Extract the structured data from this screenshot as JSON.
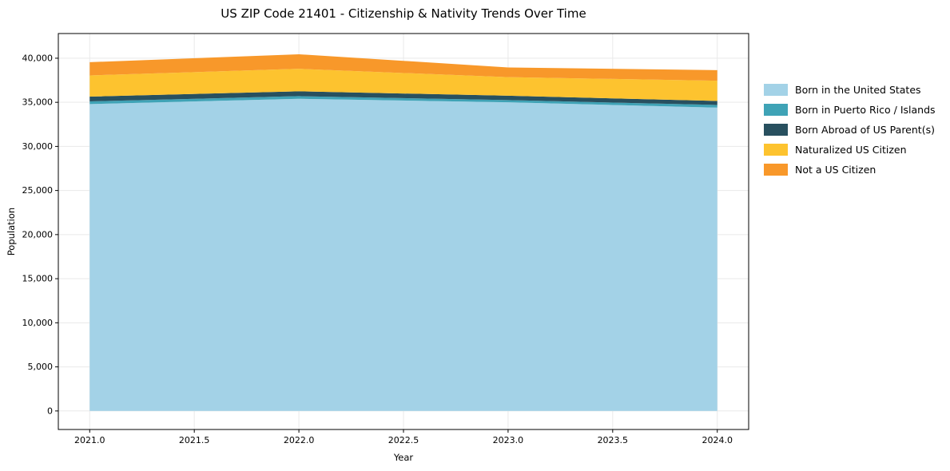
{
  "chart_data": {
    "type": "area",
    "title": "US ZIP Code 21401 - Citizenship & Nativity Trends Over Time",
    "xlabel": "Year",
    "ylabel": "Population",
    "x": [
      2021,
      2022,
      2023,
      2024
    ],
    "series": [
      {
        "name": "Born in the United States",
        "color": "#a3d2e7",
        "values": [
          34800,
          35400,
          35000,
          34400
        ]
      },
      {
        "name": "Born in Puerto Rico / Islands",
        "color": "#3fa3b6",
        "values": [
          300,
          300,
          250,
          300
        ]
      },
      {
        "name": "Born Abroad of US Parent(s)",
        "color": "#28505f",
        "values": [
          550,
          550,
          500,
          450
        ]
      },
      {
        "name": "Naturalized US Citizen",
        "color": "#fdc32f",
        "values": [
          2400,
          2550,
          2100,
          2300
        ]
      },
      {
        "name": "Not a US Citizen",
        "color": "#f8982a",
        "values": [
          1500,
          1650,
          1100,
          1200
        ]
      }
    ],
    "x_ticks": [
      "2021.0",
      "2021.5",
      "2022.0",
      "2022.5",
      "2023.0",
      "2023.5",
      "2024.0"
    ],
    "x_tick_values": [
      2021.0,
      2021.5,
      2022.0,
      2022.5,
      2023.0,
      2023.5,
      2024.0
    ],
    "y_ticks": [
      "0",
      "5,000",
      "10,000",
      "15,000",
      "20,000",
      "25,000",
      "30,000",
      "35,000",
      "40,000"
    ],
    "y_tick_values": [
      0,
      5000,
      10000,
      15000,
      20000,
      25000,
      30000,
      35000,
      40000
    ],
    "xlim": [
      2020.85,
      2024.15
    ],
    "ylim": [
      -2100,
      42800
    ],
    "grid": true,
    "grid_color": "#e9e9e9",
    "legend_position": "right"
  }
}
